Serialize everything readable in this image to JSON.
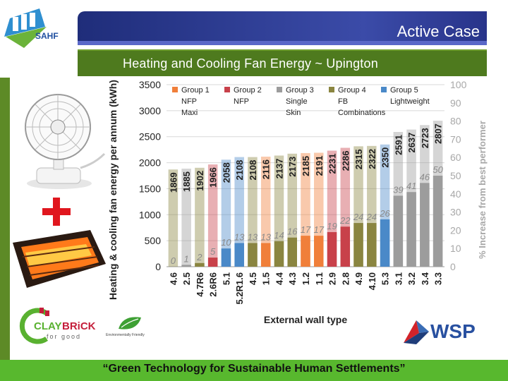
{
  "brand": {
    "sahf": "SAHF",
    "claybrick_a": "CLAY",
    "claybrick_b": "BRiCK",
    "claybrick_c": "for good",
    "eco": "Environmentally Friendly",
    "wsp": "WSP"
  },
  "header": {
    "title": "Active Case",
    "subtitle": "Heating and Cooling Fan Energy ~ Upington"
  },
  "footer": {
    "slogan": "“Green Technology for Sustainable Human Settlements”"
  },
  "colors": {
    "title_bar": "#2f3f9e",
    "subtitle_bar": "#4e7a1e",
    "footer": "#58b82e",
    "group1": "#f07f3a",
    "group2": "#c8414a",
    "group3": "#9c9c9c",
    "group4": "#8a8540",
    "group5": "#4a89c8"
  },
  "chart_data": {
    "type": "bar",
    "xlabel": "External wall type",
    "ylabel": "Heating & cooling fan energy per annum (kWh)",
    "y2label": "% Increase from best performer",
    "ylim": [
      0,
      3500
    ],
    "yticks": [
      0,
      500,
      1000,
      1500,
      2000,
      2500,
      3000,
      3500
    ],
    "y2lim": [
      0,
      100
    ],
    "y2ticks": [
      0,
      10,
      20,
      30,
      40,
      50,
      60,
      70,
      80,
      90,
      100
    ],
    "legend": [
      {
        "name": "Group 1",
        "lines": [
          "NFP",
          "Maxi"
        ],
        "color": "#f07f3a"
      },
      {
        "name": "Group 2",
        "lines": [
          "NFP"
        ],
        "color": "#c8414a"
      },
      {
        "name": "Group 3",
        "lines": [
          "Single",
          "Skin"
        ],
        "color": "#9c9c9c"
      },
      {
        "name": "Group 4",
        "lines": [
          "FB",
          "Combinations"
        ],
        "color": "#8a8540"
      },
      {
        "name": "Group 5",
        "lines": [
          "Lightweight"
        ],
        "color": "#4a89c8"
      }
    ],
    "bars": [
      {
        "x": "4.6",
        "value": 1869,
        "pct": 0,
        "group": 4
      },
      {
        "x": "2.5",
        "value": 1885,
        "pct": 1,
        "group": 3
      },
      {
        "x": "4.7R6",
        "value": 1902,
        "pct": 2,
        "group": 4
      },
      {
        "x": "2.6R6",
        "value": 1966,
        "pct": 5,
        "group": 2
      },
      {
        "x": "5.1",
        "value": 2058,
        "pct": 10,
        "group": 5
      },
      {
        "x": "5.2R1.6",
        "value": 2108,
        "pct": 13,
        "group": 5
      },
      {
        "x": "4.5",
        "value": 2108,
        "pct": 13,
        "group": 4
      },
      {
        "x": "1.5",
        "value": 2116,
        "pct": 13,
        "group": 1
      },
      {
        "x": "4.4",
        "value": 2137,
        "pct": 14,
        "group": 4
      },
      {
        "x": "4.3",
        "value": 2173,
        "pct": 16,
        "group": 4
      },
      {
        "x": "1.2",
        "value": 2185,
        "pct": 17,
        "group": 1
      },
      {
        "x": "1.1",
        "value": 2191,
        "pct": 17,
        "group": 1
      },
      {
        "x": "2.9",
        "value": 2231,
        "pct": 19,
        "group": 2
      },
      {
        "x": "2.8",
        "value": 2286,
        "pct": 22,
        "group": 2
      },
      {
        "x": "4.9",
        "value": 2315,
        "pct": 24,
        "group": 4
      },
      {
        "x": "4.10",
        "value": 2322,
        "pct": 24,
        "group": 4
      },
      {
        "x": "5.3",
        "value": 2350,
        "pct": 26,
        "group": 5
      },
      {
        "x": "3.1",
        "value": 2591,
        "pct": 39,
        "group": 3
      },
      {
        "x": "3.2",
        "value": 2637,
        "pct": 41,
        "group": 3
      },
      {
        "x": "3.4",
        "value": 2723,
        "pct": 46,
        "group": 3
      },
      {
        "x": "3.3",
        "value": 2807,
        "pct": 50,
        "group": 3
      }
    ]
  }
}
